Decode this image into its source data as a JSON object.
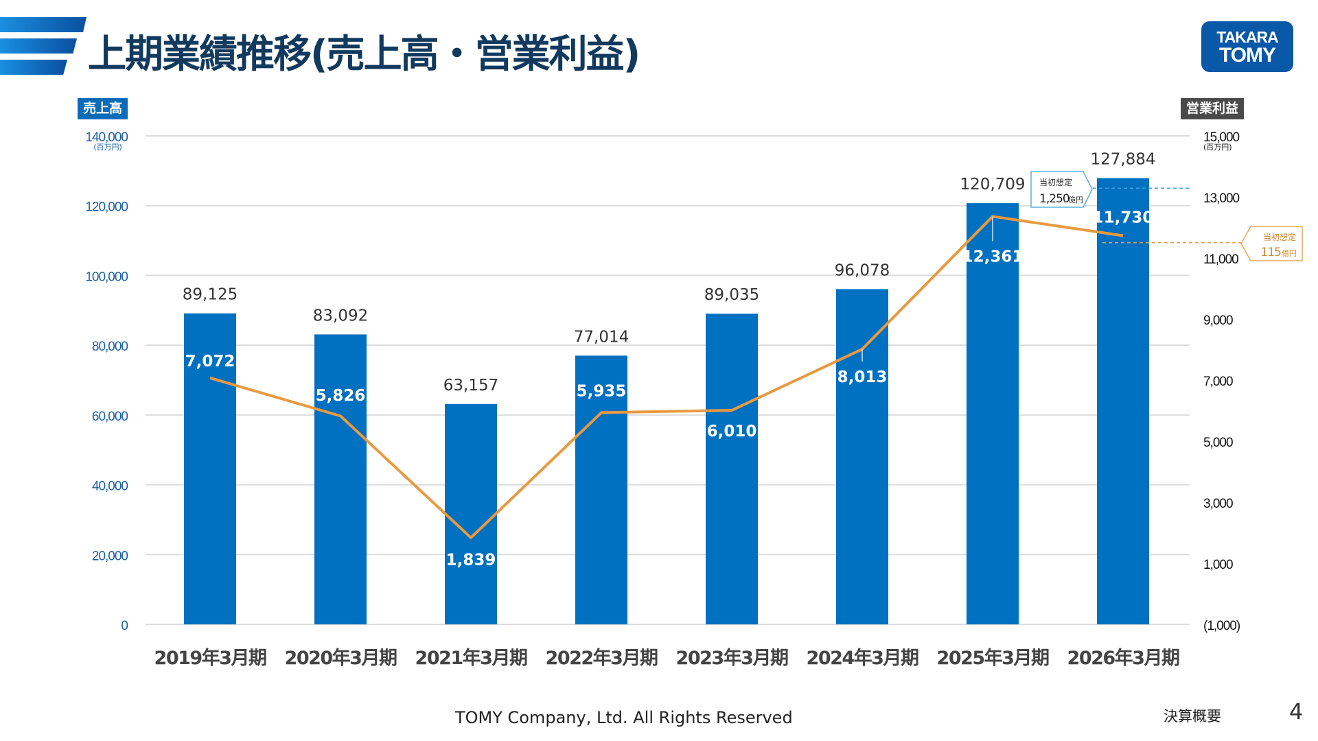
{
  "header": {
    "title": "上期業績推移(売上高・営業利益)"
  },
  "logo": {
    "line1": "TAKARA",
    "line2": "TOMY"
  },
  "colors": {
    "bar": "#0070c0",
    "line": "#e89a40",
    "title": "#123a5e",
    "left_badge": "#0a6bb8",
    "right_badge": "#4a4a4a"
  },
  "chart_data": {
    "type": "bar+line",
    "categories": [
      "2019年3月期",
      "2020年3月期",
      "2021年3月期",
      "2022年3月期",
      "2023年3月期",
      "2024年3月期",
      "2025年3月期",
      "2026年3月期"
    ],
    "series": [
      {
        "name": "売上高",
        "type": "bar",
        "axis": "left",
        "values": [
          89125,
          83092,
          63157,
          77014,
          89035,
          96078,
          120709,
          127884
        ],
        "labels": [
          "89,125",
          "83,092",
          "63,157",
          "77,014",
          "89,035",
          "96,078",
          "120,709",
          "127,884"
        ]
      },
      {
        "name": "営業利益",
        "type": "line",
        "axis": "right",
        "values": [
          7072,
          5826,
          1839,
          5935,
          6010,
          8013,
          12361,
          11730
        ],
        "labels": [
          "7,072",
          "5,826",
          "1,839",
          "5,935",
          "6,010",
          "8,013",
          "12,361",
          "11,730"
        ]
      }
    ],
    "left_axis": {
      "label": "売上高",
      "unit": "(百万円)",
      "ylim": [
        0,
        140000
      ],
      "ticks": [
        0,
        20000,
        40000,
        60000,
        80000,
        100000,
        120000,
        140000
      ],
      "tick_labels": [
        "0",
        "20,000",
        "40,000",
        "60,000",
        "80,000",
        "100,000",
        "120,000",
        "140,000"
      ]
    },
    "right_axis": {
      "label": "営業利益",
      "unit": "(百万円)",
      "ylim": [
        -1000,
        15000
      ],
      "ticks": [
        -1000,
        1000,
        3000,
        5000,
        7000,
        9000,
        11000,
        13000,
        15000
      ],
      "tick_labels": [
        "(1,000)",
        "1,000",
        "3,000",
        "5,000",
        "7,000",
        "9,000",
        "11,000",
        "13,000",
        "15,000"
      ]
    },
    "grid": true,
    "annotations": [
      {
        "series": "売上高",
        "category": "2026年3月期",
        "line1": "当初想定",
        "line2_value": "1,250",
        "line2_unit": "億円",
        "value": 125000
      },
      {
        "series": "営業利益",
        "category": "2026年3月期",
        "line1": "当初想定",
        "line2_value": "115",
        "line2_unit": "億円",
        "value": 11500
      }
    ]
  },
  "footer": {
    "copyright": "TOMY Company, Ltd. All Rights Reserved",
    "section": "決算概要",
    "page": "4"
  }
}
